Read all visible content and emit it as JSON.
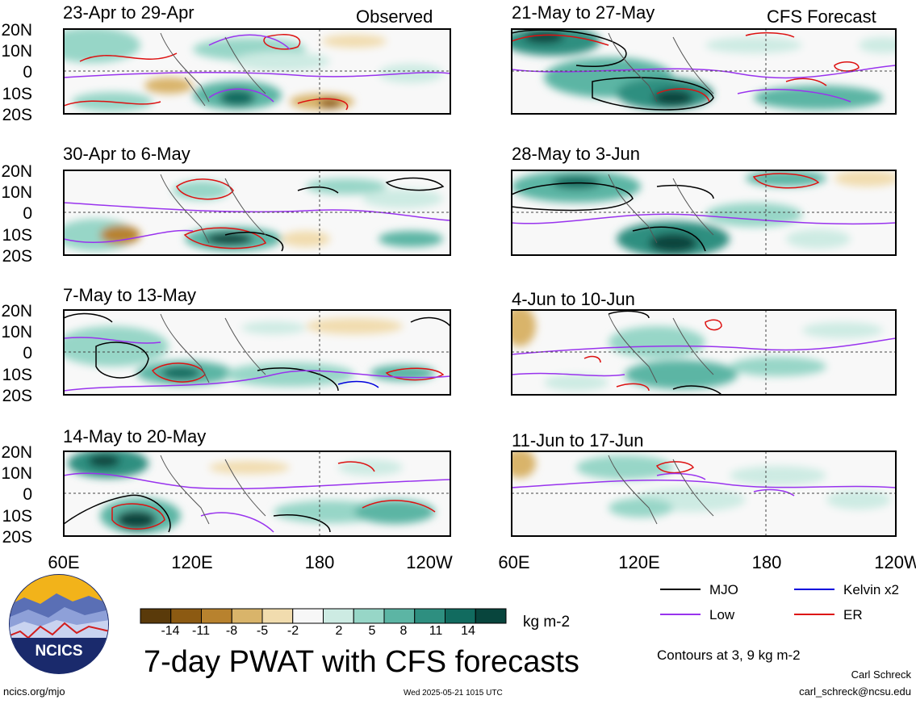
{
  "panels": [
    {
      "title": "23-Apr to 29-Apr",
      "tag": "Observed"
    },
    {
      "title": "30-Apr to 6-May",
      "tag": ""
    },
    {
      "title": "7-May to 13-May",
      "tag": ""
    },
    {
      "title": "14-May to 20-May",
      "tag": ""
    },
    {
      "title": "21-May to 27-May",
      "tag": "CFS Forecast"
    },
    {
      "title": "28-May to 3-Jun",
      "tag": ""
    },
    {
      "title": "4-Jun to 10-Jun",
      "tag": ""
    },
    {
      "title": "11-Jun to 17-Jun",
      "tag": ""
    }
  ],
  "lat_labels": [
    "20N",
    "10N",
    "0",
    "10S",
    "20S"
  ],
  "lon_labels": [
    "60E",
    "120E",
    "180",
    "120W"
  ],
  "colorbar": {
    "colors": [
      "#5a3a0a",
      "#8c5a12",
      "#b8822e",
      "#d9b46a",
      "#f1dcae",
      "#f7f7f7",
      "#cdebe3",
      "#97d6c7",
      "#5cb5a4",
      "#2e8f80",
      "#116b5f",
      "#08453d"
    ],
    "labels": [
      "-14",
      "-11",
      "-8",
      "-5",
      "-2",
      "2",
      "5",
      "8",
      "11",
      "14"
    ],
    "unit": "kg m-2"
  },
  "main_title": "7-day PWAT with CFS forecasts",
  "legend": [
    {
      "label": "MJO",
      "color": "#000000"
    },
    {
      "label": "Kelvin x2",
      "color": "#0000dd"
    },
    {
      "label": "Low",
      "color": "#9933ee"
    },
    {
      "label": "ER",
      "color": "#dd1111"
    }
  ],
  "contours_note": "Contours at 3, 9 kg m-2",
  "author": "Carl Schreck",
  "email": "carl_schreck@ncsu.edu",
  "website": "ncics.org/mjo",
  "timestamp": "Wed 2025-05-21 1015 UTC",
  "logo_text": "NCICS"
}
